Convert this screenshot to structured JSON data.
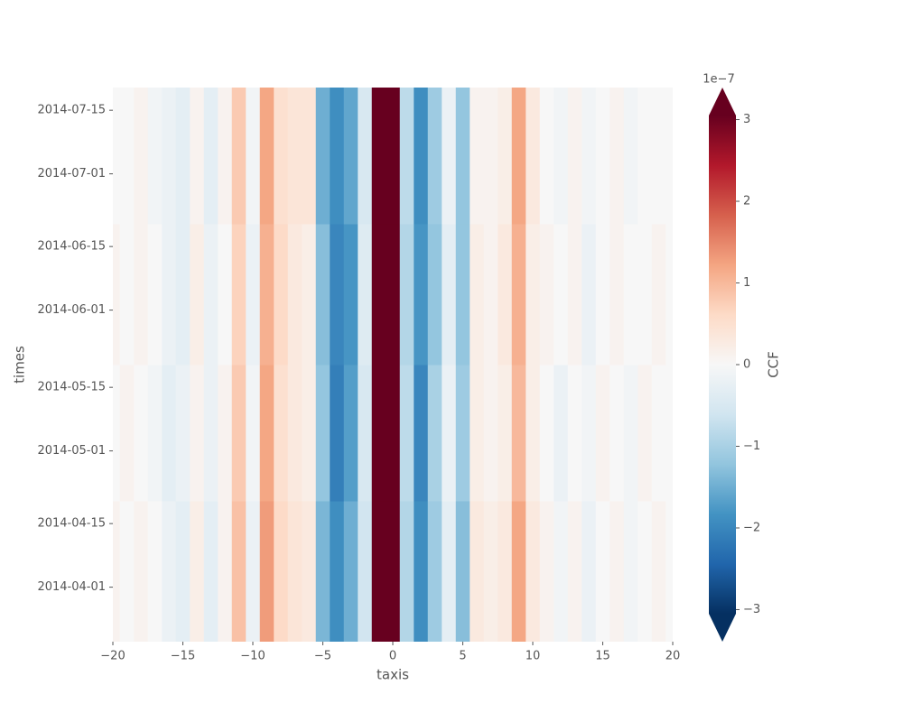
{
  "chart_data": {
    "type": "heatmap",
    "xlabel": "taxis",
    "ylabel": "times",
    "colorbar_label": "CCF",
    "colorbar_offset_label": "1e−7",
    "colormap": "RdBu_r",
    "clim": [
      -3.05,
      3.05
    ],
    "grid": false,
    "x": [
      -20,
      -19,
      -18,
      -17,
      -16,
      -15,
      -14,
      -13,
      -12,
      -11,
      -10,
      -9,
      -8,
      -7,
      -6,
      -5,
      -4,
      -3,
      -2,
      -1,
      0,
      1,
      2,
      3,
      4,
      5,
      6,
      7,
      8,
      9,
      10,
      11,
      12,
      13,
      14,
      15,
      16,
      17,
      18,
      19,
      20
    ],
    "y_edges": [
      "2014-03-20",
      "2014-04-20",
      "2014-05-20",
      "2014-06-20",
      "2014-07-20"
    ],
    "z": [
      [
        0.1,
        0,
        0.1,
        0,
        -0.2,
        -0.3,
        0.2,
        -0.3,
        0.1,
        0.9,
        -0.2,
        1.3,
        0.6,
        0.4,
        0.3,
        -1.4,
        -1.9,
        -1.5,
        -0.6,
        3.2,
        3.3,
        -0.9,
        -1.9,
        -1.1,
        -0.3,
        -1.3,
        0.3,
        0.2,
        0.3,
        1.2,
        0.3,
        0.1,
        -0.1,
        0.1,
        -0.2,
        0,
        0.1,
        -0.1,
        0,
        0.1,
        0
      ],
      [
        0,
        0.1,
        0,
        -0.1,
        -0.3,
        -0.2,
        0.1,
        -0.2,
        0.1,
        0.8,
        -0.1,
        1.2,
        0.5,
        0.3,
        0.2,
        -1.2,
        -2.1,
        -1.7,
        -0.5,
        3.3,
        3.3,
        -0.8,
        -2,
        -1,
        -0.2,
        -1.1,
        0.2,
        0.1,
        0.2,
        1,
        0.2,
        0,
        -0.2,
        0,
        -0.1,
        0.1,
        0,
        -0.1,
        0.1,
        0,
        0
      ],
      [
        0.1,
        0,
        0.1,
        0,
        -0.2,
        -0.3,
        0.2,
        -0.2,
        0,
        0.7,
        -0.2,
        1.1,
        0.6,
        0.3,
        0.2,
        -1.3,
        -2,
        -1.8,
        -0.4,
        3.1,
        3.3,
        -0.9,
        -1.8,
        -1.2,
        -0.3,
        -1.2,
        0.2,
        0.1,
        0.3,
        1.1,
        0.2,
        0.1,
        0,
        0.1,
        -0.2,
        0,
        0.1,
        0,
        0,
        0.1,
        0
      ],
      [
        0,
        0,
        0.1,
        -0.1,
        -0.2,
        -0.3,
        0.1,
        -0.3,
        0.1,
        0.8,
        -0.1,
        1.2,
        0.5,
        0.4,
        0.4,
        -1.5,
        -1.9,
        -1.6,
        -0.5,
        3.2,
        3.3,
        -0.8,
        -1.9,
        -1.1,
        -0.2,
        -1.2,
        0.1,
        0.1,
        0.2,
        1.2,
        0.3,
        0,
        -0.1,
        0.1,
        -0.1,
        0,
        0.1,
        -0.1,
        0,
        0,
        0
      ]
    ],
    "xlim": [
      -20,
      20
    ],
    "xticks": [
      {
        "value": -20,
        "label": "−20"
      },
      {
        "value": -15,
        "label": "−15"
      },
      {
        "value": -10,
        "label": "−10"
      },
      {
        "value": -5,
        "label": "−5"
      },
      0,
      5,
      10,
      15,
      20
    ],
    "ylim": [
      "2014-03-20",
      "2014-07-20"
    ],
    "yticks": [
      "2014-04-01",
      "2014-04-15",
      "2014-05-01",
      "2014-05-15",
      "2014-06-01",
      "2014-06-15",
      "2014-07-01",
      "2014-07-15"
    ],
    "cticks": [
      {
        "value": -3,
        "label": "−3"
      },
      {
        "value": -2,
        "label": "−2"
      },
      {
        "value": -1,
        "label": "−1"
      },
      0,
      1,
      2,
      3
    ]
  }
}
